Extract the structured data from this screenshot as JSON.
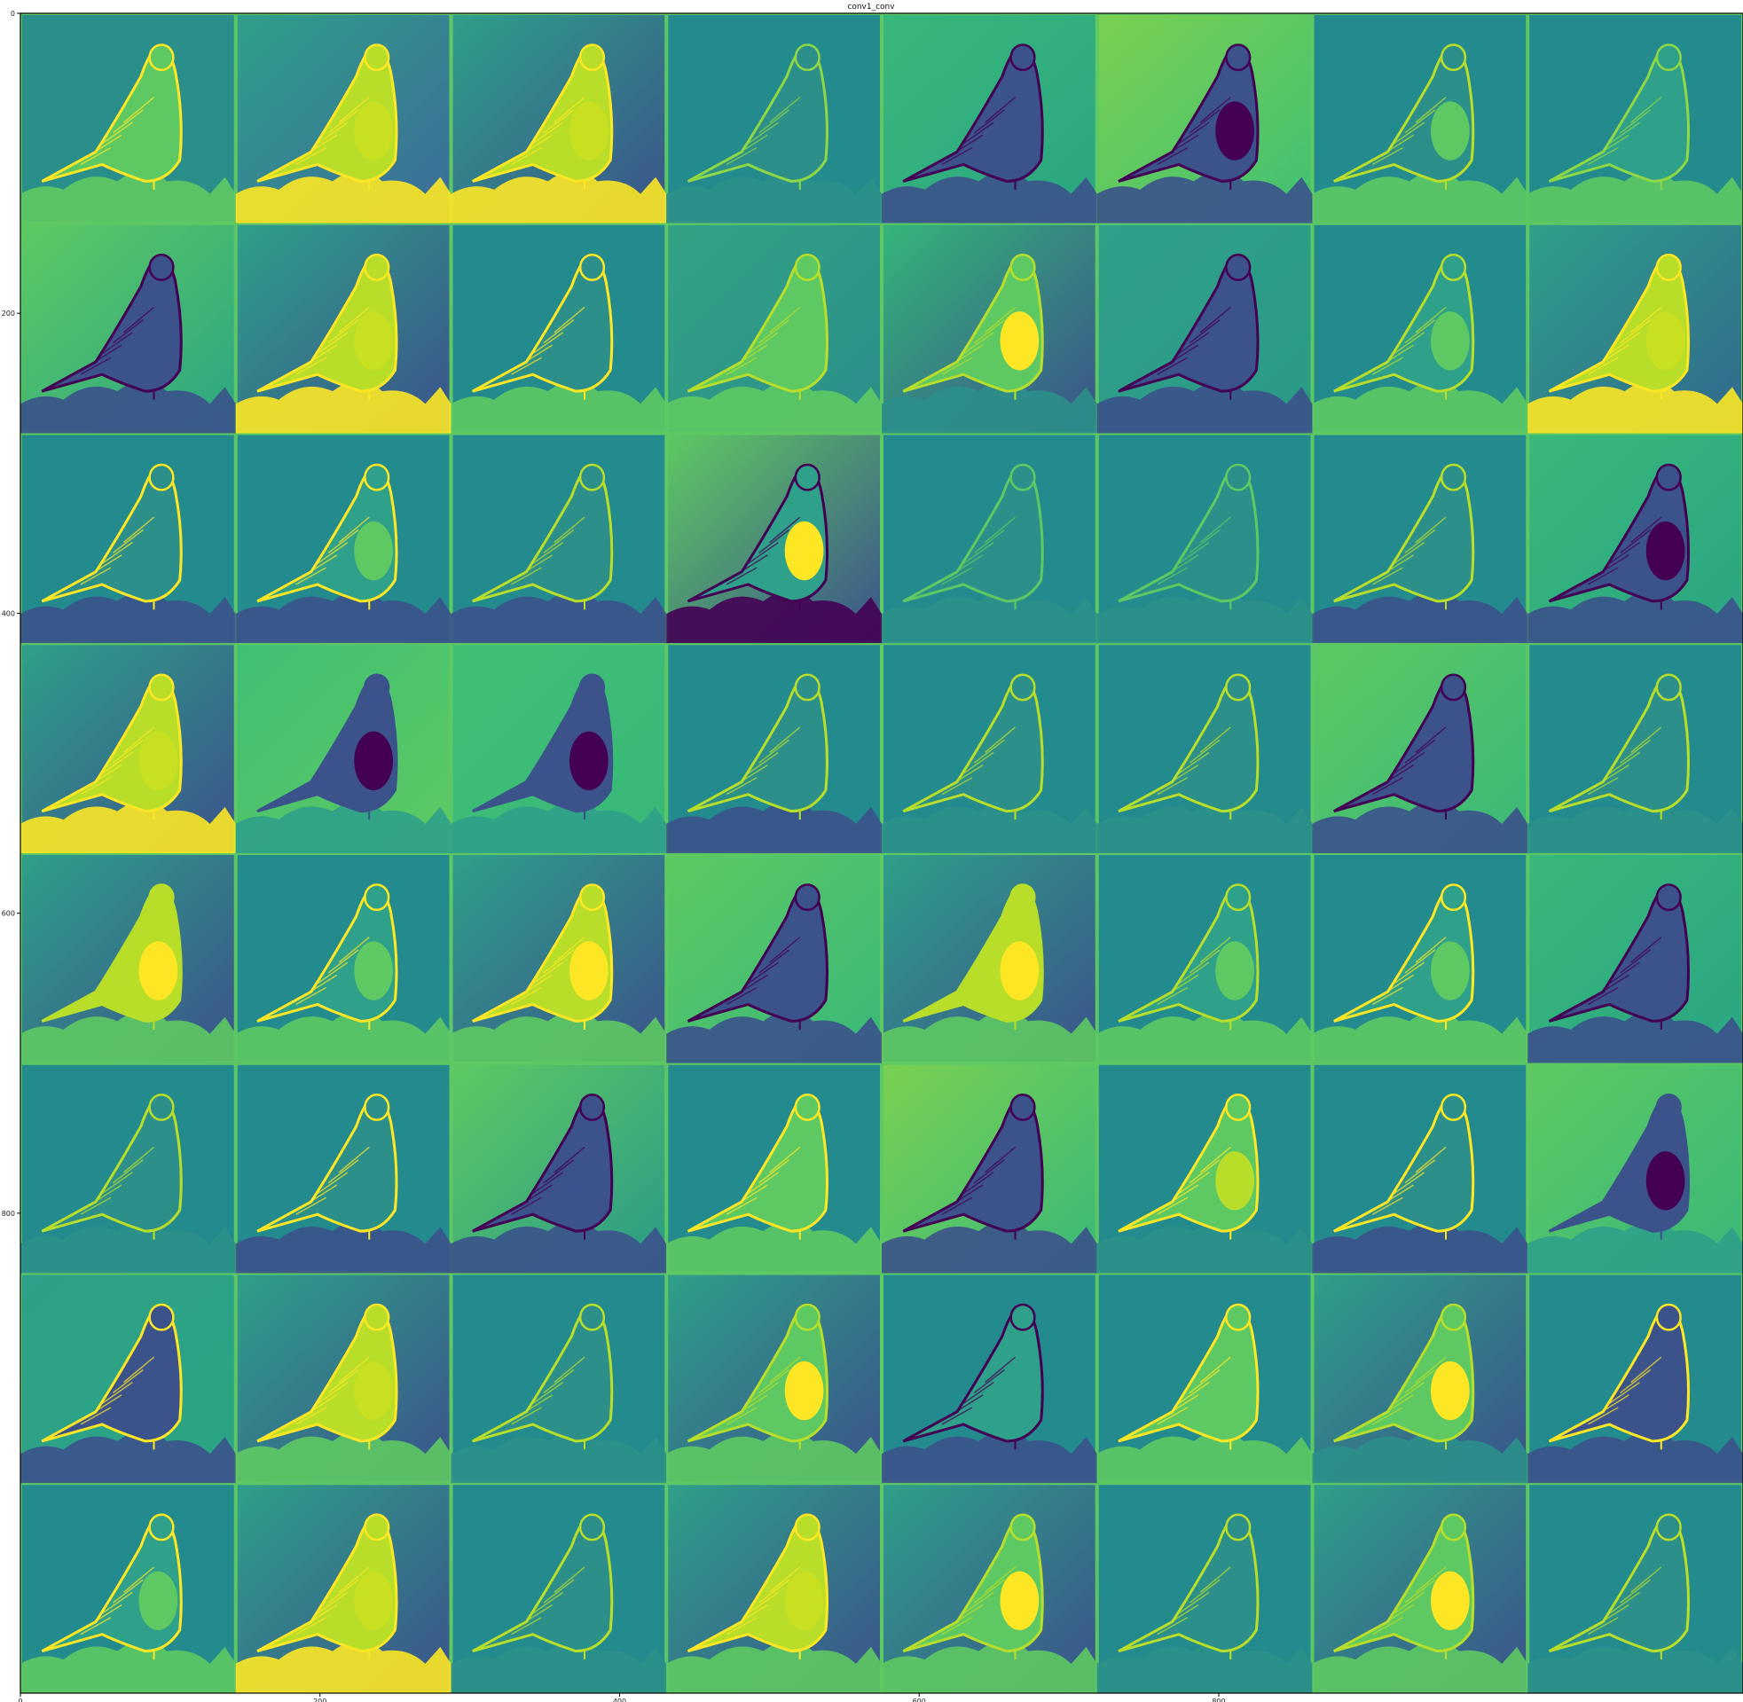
{
  "figure": {
    "title": "conv1_conv",
    "grid": {
      "rows": 8,
      "cols": 8
    },
    "x_ticks": [
      "0",
      "200",
      "400",
      "600",
      "800"
    ],
    "y_ticks": [
      "0",
      "200",
      "400",
      "600",
      "800"
    ],
    "colormap": [
      "#440154",
      "#3b528b",
      "#21918c",
      "#5ec962",
      "#fde725"
    ],
    "background_color": "#238a8d",
    "frame_color": "#000000"
  },
  "feature_maps": [
    {
      "bg": "#2a8e8a",
      "grad": "#2a8e8a",
      "bird": "#5ec962",
      "belly": "#5ec962",
      "edge": "#fde725",
      "ground": "#5ec962"
    },
    {
      "bg": "#3d6a9a",
      "grad": "#2fa089",
      "bird": "#b8de29",
      "belly": "#c8e020",
      "edge": "#fde725",
      "ground": "#fde725"
    },
    {
      "bg": "#3b528b",
      "grad": "#2fa089",
      "bird": "#b8de29",
      "belly": "#c8e020",
      "edge": "#fde725",
      "ground": "#fde725"
    },
    {
      "bg": "#238a8d",
      "grad": "#238a8d",
      "bird": "#2c8f8a",
      "belly": "#2c8f8a",
      "edge": "#8fd744",
      "ground": "#2c8f8a"
    },
    {
      "bg": "#2aa583",
      "grad": "#38b879",
      "bird": "#3b528b",
      "belly": "#3b528b",
      "edge": "#440154",
      "ground": "#3b528b"
    },
    {
      "bg": "#3fbf74",
      "grad": "#7ad151",
      "bird": "#3b528b",
      "belly": "#440154",
      "edge": "#440154",
      "ground": "#3b528b"
    },
    {
      "bg": "#238a8d",
      "grad": "#238a8d",
      "bird": "#2c8f8a",
      "belly": "#5ec962",
      "edge": "#b8de29",
      "ground": "#5ec962"
    },
    {
      "bg": "#238a8d",
      "grad": "#238a8d",
      "bird": "#2fa089",
      "belly": "#2fa089",
      "edge": "#8fd744",
      "ground": "#5ec962"
    },
    {
      "bg": "#2aa583",
      "grad": "#5ec962",
      "bird": "#3b528b",
      "belly": "#3b528b",
      "edge": "#440154",
      "ground": "#3b528b"
    },
    {
      "bg": "#3b528b",
      "grad": "#2fa089",
      "bird": "#b8de29",
      "belly": "#c8e020",
      "edge": "#fde725",
      "ground": "#fde725"
    },
    {
      "bg": "#238a8d",
      "grad": "#238a8d",
      "bird": "#2c8f8a",
      "belly": "#2c8f8a",
      "edge": "#fde725",
      "ground": "#5ec962"
    },
    {
      "bg": "#2a8e8a",
      "grad": "#33a385",
      "bird": "#5ec962",
      "belly": "#5ec962",
      "edge": "#b8de29",
      "ground": "#5ec962"
    },
    {
      "bg": "#3b528b",
      "grad": "#34b679",
      "bird": "#5ec962",
      "belly": "#fde725",
      "edge": "#b8de29",
      "ground": "#2c8f8a"
    },
    {
      "bg": "#2a9a88",
      "grad": "#2fa089",
      "bird": "#3b528b",
      "belly": "#3b528b",
      "edge": "#440154",
      "ground": "#3b528b"
    },
    {
      "bg": "#238a8d",
      "grad": "#238a8d",
      "bird": "#2fa089",
      "belly": "#5ec962",
      "edge": "#b8de29",
      "ground": "#5ec962"
    },
    {
      "bg": "#31688e",
      "grad": "#2fa089",
      "bird": "#b8de29",
      "belly": "#c8e020",
      "edge": "#fde725",
      "ground": "#fde725"
    },
    {
      "bg": "#238a8d",
      "grad": "#238a8d",
      "bird": "#2c8f8a",
      "belly": "#2c8f8a",
      "edge": "#fde725",
      "ground": "#3b528b"
    },
    {
      "bg": "#238a8d",
      "grad": "#238a8d",
      "bird": "#2fa089",
      "belly": "#5ec962",
      "edge": "#fde725",
      "ground": "#3b528b"
    },
    {
      "bg": "#238a8d",
      "grad": "#238a8d",
      "bird": "#2c8f8a",
      "belly": "#2c8f8a",
      "edge": "#b8de29",
      "ground": "#3b528b"
    },
    {
      "bg": "#3b528b",
      "grad": "#5ec962",
      "bird": "#2fa089",
      "belly": "#fde725",
      "edge": "#440154",
      "ground": "#440154"
    },
    {
      "bg": "#238a8d",
      "grad": "#238a8d",
      "bird": "#2c8f8a",
      "belly": "#2c8f8a",
      "edge": "#5ec962",
      "ground": "#2c8f8a"
    },
    {
      "bg": "#238a8d",
      "grad": "#238a8d",
      "bird": "#2c8f8a",
      "belly": "#2c8f8a",
      "edge": "#5ec962",
      "ground": "#2c8f8a"
    },
    {
      "bg": "#238a8d",
      "grad": "#238a8d",
      "bird": "#2c8f8a",
      "belly": "#2c8f8a",
      "edge": "#b8de29",
      "ground": "#3b528b"
    },
    {
      "bg": "#2aa583",
      "grad": "#38b879",
      "bird": "#3b528b",
      "belly": "#440154",
      "edge": "#440154",
      "ground": "#3b528b"
    },
    {
      "bg": "#3b528b",
      "grad": "#2fa089",
      "bird": "#b8de29",
      "belly": "#c8e020",
      "edge": "#fde725",
      "ground": "#fde725"
    },
    {
      "bg": "#5ec962",
      "grad": "#3fbf74",
      "bird": "#3b528b",
      "belly": "#440154",
      "edge": "#3b528b",
      "ground": "#2fa089"
    },
    {
      "bg": "#38b879",
      "grad": "#3fbf74",
      "bird": "#3b528b",
      "belly": "#440154",
      "edge": "#3b528b",
      "ground": "#2fa089"
    },
    {
      "bg": "#238a8d",
      "grad": "#238a8d",
      "bird": "#2c8f8a",
      "belly": "#2c8f8a",
      "edge": "#b8de29",
      "ground": "#3b528b"
    },
    {
      "bg": "#238a8d",
      "grad": "#238a8d",
      "bird": "#2c8f8a",
      "belly": "#2c8f8a",
      "edge": "#b8de29",
      "ground": "#2c8f8a"
    },
    {
      "bg": "#238a8d",
      "grad": "#238a8d",
      "bird": "#2c8f8a",
      "belly": "#2c8f8a",
      "edge": "#b8de29",
      "ground": "#2c8f8a"
    },
    {
      "bg": "#38b879",
      "grad": "#5ec962",
      "bird": "#3b528b",
      "belly": "#3b528b",
      "edge": "#440154",
      "ground": "#3b528b"
    },
    {
      "bg": "#238a8d",
      "grad": "#238a8d",
      "bird": "#2c8f8a",
      "belly": "#2c8f8a",
      "edge": "#b8de29",
      "ground": "#2c8f8a"
    },
    {
      "bg": "#3b528b",
      "grad": "#2fa089",
      "bird": "#b8de29",
      "belly": "#fde725",
      "edge": "#b8de29",
      "ground": "#5ec962"
    },
    {
      "bg": "#238a8d",
      "grad": "#238a8d",
      "bird": "#2fa089",
      "belly": "#5ec962",
      "edge": "#fde725",
      "ground": "#5ec962"
    },
    {
      "bg": "#3b528b",
      "grad": "#2fa089",
      "bird": "#b8de29",
      "belly": "#fde725",
      "edge": "#fde725",
      "ground": "#5ec962"
    },
    {
      "bg": "#38b879",
      "grad": "#5ec962",
      "bird": "#3b528b",
      "belly": "#3b528b",
      "edge": "#440154",
      "ground": "#3b528b"
    },
    {
      "bg": "#3b528b",
      "grad": "#2fa089",
      "bird": "#b8de29",
      "belly": "#fde725",
      "edge": "#b8de29",
      "ground": "#5ec962"
    },
    {
      "bg": "#238a8d",
      "grad": "#238a8d",
      "bird": "#2fa089",
      "belly": "#5ec962",
      "edge": "#b8de29",
      "ground": "#5ec962"
    },
    {
      "bg": "#238a8d",
      "grad": "#238a8d",
      "bird": "#2fa089",
      "belly": "#5ec962",
      "edge": "#fde725",
      "ground": "#5ec962"
    },
    {
      "bg": "#2aa583",
      "grad": "#38b879",
      "bird": "#3b528b",
      "belly": "#3b528b",
      "edge": "#440154",
      "ground": "#3b528b"
    },
    {
      "bg": "#238a8d",
      "grad": "#238a8d",
      "bird": "#2c8f8a",
      "belly": "#2c8f8a",
      "edge": "#b8de29",
      "ground": "#2c8f8a"
    },
    {
      "bg": "#238a8d",
      "grad": "#238a8d",
      "bird": "#2c8f8a",
      "belly": "#2c8f8a",
      "edge": "#fde725",
      "ground": "#3b528b"
    },
    {
      "bg": "#2a9a88",
      "grad": "#5ec962",
      "bird": "#3b528b",
      "belly": "#3b528b",
      "edge": "#440154",
      "ground": "#3b528b"
    },
    {
      "bg": "#238a8d",
      "grad": "#238a8d",
      "bird": "#5ec962",
      "belly": "#5ec962",
      "edge": "#fde725",
      "ground": "#5ec962"
    },
    {
      "bg": "#38b879",
      "grad": "#7ad151",
      "bird": "#3b528b",
      "belly": "#3b528b",
      "edge": "#440154",
      "ground": "#3b528b"
    },
    {
      "bg": "#238a8d",
      "grad": "#238a8d",
      "bird": "#5ec962",
      "belly": "#b8de29",
      "edge": "#fde725",
      "ground": "#2c8f8a"
    },
    {
      "bg": "#238a8d",
      "grad": "#238a8d",
      "bird": "#2c8f8a",
      "belly": "#2c8f8a",
      "edge": "#fde725",
      "ground": "#3b528b"
    },
    {
      "bg": "#38b879",
      "grad": "#5ec962",
      "bird": "#3b528b",
      "belly": "#440154",
      "edge": "#3b528b",
      "ground": "#2fa089"
    },
    {
      "bg": "#2aa583",
      "grad": "#2fa089",
      "bird": "#3b528b",
      "belly": "#3b528b",
      "edge": "#fde725",
      "ground": "#3b528b"
    },
    {
      "bg": "#3b528b",
      "grad": "#2fa089",
      "bird": "#b8de29",
      "belly": "#c8e020",
      "edge": "#fde725",
      "ground": "#5ec962"
    },
    {
      "bg": "#238a8d",
      "grad": "#238a8d",
      "bird": "#2c8f8a",
      "belly": "#2c8f8a",
      "edge": "#b8de29",
      "ground": "#2c8f8a"
    },
    {
      "bg": "#3b528b",
      "grad": "#2fa089",
      "bird": "#5ec962",
      "belly": "#fde725",
      "edge": "#b8de29",
      "ground": "#5ec962"
    },
    {
      "bg": "#238a8d",
      "grad": "#238a8d",
      "bird": "#2fa089",
      "belly": "#2fa089",
      "edge": "#440154",
      "ground": "#3b528b"
    },
    {
      "bg": "#238a8d",
      "grad": "#238a8d",
      "bird": "#5ec962",
      "belly": "#5ec962",
      "edge": "#fde725",
      "ground": "#5ec962"
    },
    {
      "bg": "#3b528b",
      "grad": "#2fa089",
      "bird": "#5ec962",
      "belly": "#fde725",
      "edge": "#b8de29",
      "ground": "#2c8f8a"
    },
    {
      "bg": "#238a8d",
      "grad": "#238a8d",
      "bird": "#3b528b",
      "belly": "#3b528b",
      "edge": "#fde725",
      "ground": "#3b528b"
    },
    {
      "bg": "#238a8d",
      "grad": "#238a8d",
      "bird": "#2fa089",
      "belly": "#5ec962",
      "edge": "#fde725",
      "ground": "#5ec962"
    },
    {
      "bg": "#3b528b",
      "grad": "#2fa089",
      "bird": "#b8de29",
      "belly": "#c8e020",
      "edge": "#fde725",
      "ground": "#fde725"
    },
    {
      "bg": "#238a8d",
      "grad": "#238a8d",
      "bird": "#2c8f8a",
      "belly": "#2c8f8a",
      "edge": "#b8de29",
      "ground": "#2c8f8a"
    },
    {
      "bg": "#3b528b",
      "grad": "#2fa089",
      "bird": "#b8de29",
      "belly": "#c8e020",
      "edge": "#fde725",
      "ground": "#5ec962"
    },
    {
      "bg": "#3b528b",
      "grad": "#2fa089",
      "bird": "#5ec962",
      "belly": "#fde725",
      "edge": "#b8de29",
      "ground": "#5ec962"
    },
    {
      "bg": "#238a8d",
      "grad": "#238a8d",
      "bird": "#2c8f8a",
      "belly": "#2c8f8a",
      "edge": "#b8de29",
      "ground": "#2c8f8a"
    },
    {
      "bg": "#3b528b",
      "grad": "#2fa089",
      "bird": "#5ec962",
      "belly": "#fde725",
      "edge": "#b8de29",
      "ground": "#5ec962"
    },
    {
      "bg": "#238a8d",
      "grad": "#238a8d",
      "bird": "#2c8f8a",
      "belly": "#2c8f8a",
      "edge": "#b8de29",
      "ground": "#2c8f8a"
    }
  ]
}
